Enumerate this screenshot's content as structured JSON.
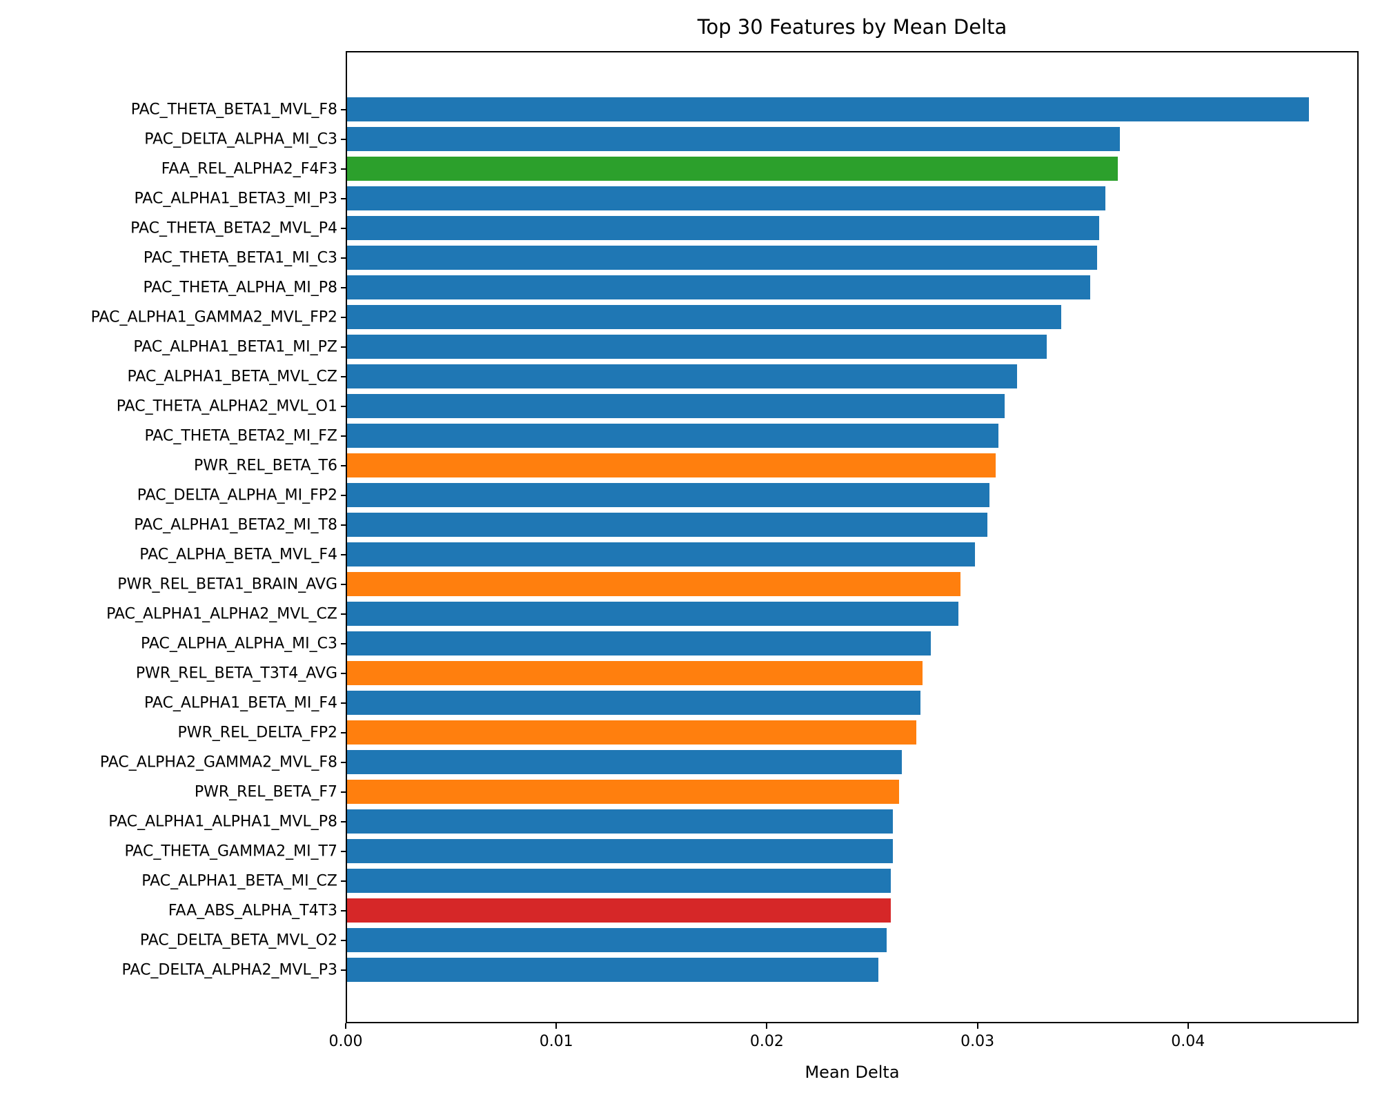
{
  "colors": {
    "blue": "#1f77b4",
    "orange": "#ff7f0e",
    "green": "#2ca02c",
    "red": "#d62728",
    "axis": "#000000",
    "background": "#ffffff"
  },
  "chart_data": {
    "type": "bar",
    "orientation": "horizontal",
    "title": "Top 30 Features by Mean Delta",
    "xlabel": "Mean Delta",
    "ylabel": "",
    "xlim": [
      0,
      0.0481
    ],
    "grid": false,
    "legend": false,
    "x_ticks": [
      0.0,
      0.01,
      0.02,
      0.03,
      0.04
    ],
    "x_tick_labels": [
      "0.00",
      "0.01",
      "0.02",
      "0.03",
      "0.04"
    ],
    "categories": [
      "PAC_THETA_BETA1_MVL_F8",
      "PAC_DELTA_ALPHA_MI_C3",
      "FAA_REL_ALPHA2_F4F3",
      "PAC_ALPHA1_BETA3_MI_P3",
      "PAC_THETA_BETA2_MVL_P4",
      "PAC_THETA_BETA1_MI_C3",
      "PAC_THETA_ALPHA_MI_P8",
      "PAC_ALPHA1_GAMMA2_MVL_FP2",
      "PAC_ALPHA1_BETA1_MI_PZ",
      "PAC_ALPHA1_BETA_MVL_CZ",
      "PAC_THETA_ALPHA2_MVL_O1",
      "PAC_THETA_BETA2_MI_FZ",
      "PWR_REL_BETA_T6",
      "PAC_DELTA_ALPHA_MI_FP2",
      "PAC_ALPHA1_BETA2_MI_T8",
      "PAC_ALPHA_BETA_MVL_F4",
      "PWR_REL_BETA1_BRAIN_AVG",
      "PAC_ALPHA1_ALPHA2_MVL_CZ",
      "PAC_ALPHA_ALPHA_MI_C3",
      "PWR_REL_BETA_T3T4_AVG",
      "PAC_ALPHA1_BETA_MI_F4",
      "PWR_REL_DELTA_FP2",
      "PAC_ALPHA2_GAMMA2_MVL_F8",
      "PWR_REL_BETA_F7",
      "PAC_ALPHA1_ALPHA1_MVL_P8",
      "PAC_THETA_GAMMA2_MI_T7",
      "PAC_ALPHA1_BETA_MI_CZ",
      "FAA_ABS_ALPHA_T4T3",
      "PAC_DELTA_BETA_MVL_O2",
      "PAC_DELTA_ALPHA2_MVL_P3"
    ],
    "values": [
      0.0458,
      0.0368,
      0.0367,
      0.0361,
      0.0358,
      0.0357,
      0.0354,
      0.034,
      0.0333,
      0.0319,
      0.0313,
      0.031,
      0.0309,
      0.0306,
      0.0305,
      0.0299,
      0.0292,
      0.0291,
      0.0278,
      0.0274,
      0.0273,
      0.0271,
      0.0264,
      0.0263,
      0.026,
      0.026,
      0.0259,
      0.0259,
      0.0257,
      0.0253
    ],
    "bar_colors": [
      "blue",
      "blue",
      "green",
      "blue",
      "blue",
      "blue",
      "blue",
      "blue",
      "blue",
      "blue",
      "blue",
      "blue",
      "orange",
      "blue",
      "blue",
      "blue",
      "orange",
      "blue",
      "blue",
      "orange",
      "blue",
      "orange",
      "blue",
      "orange",
      "blue",
      "blue",
      "blue",
      "red",
      "blue",
      "blue"
    ]
  }
}
